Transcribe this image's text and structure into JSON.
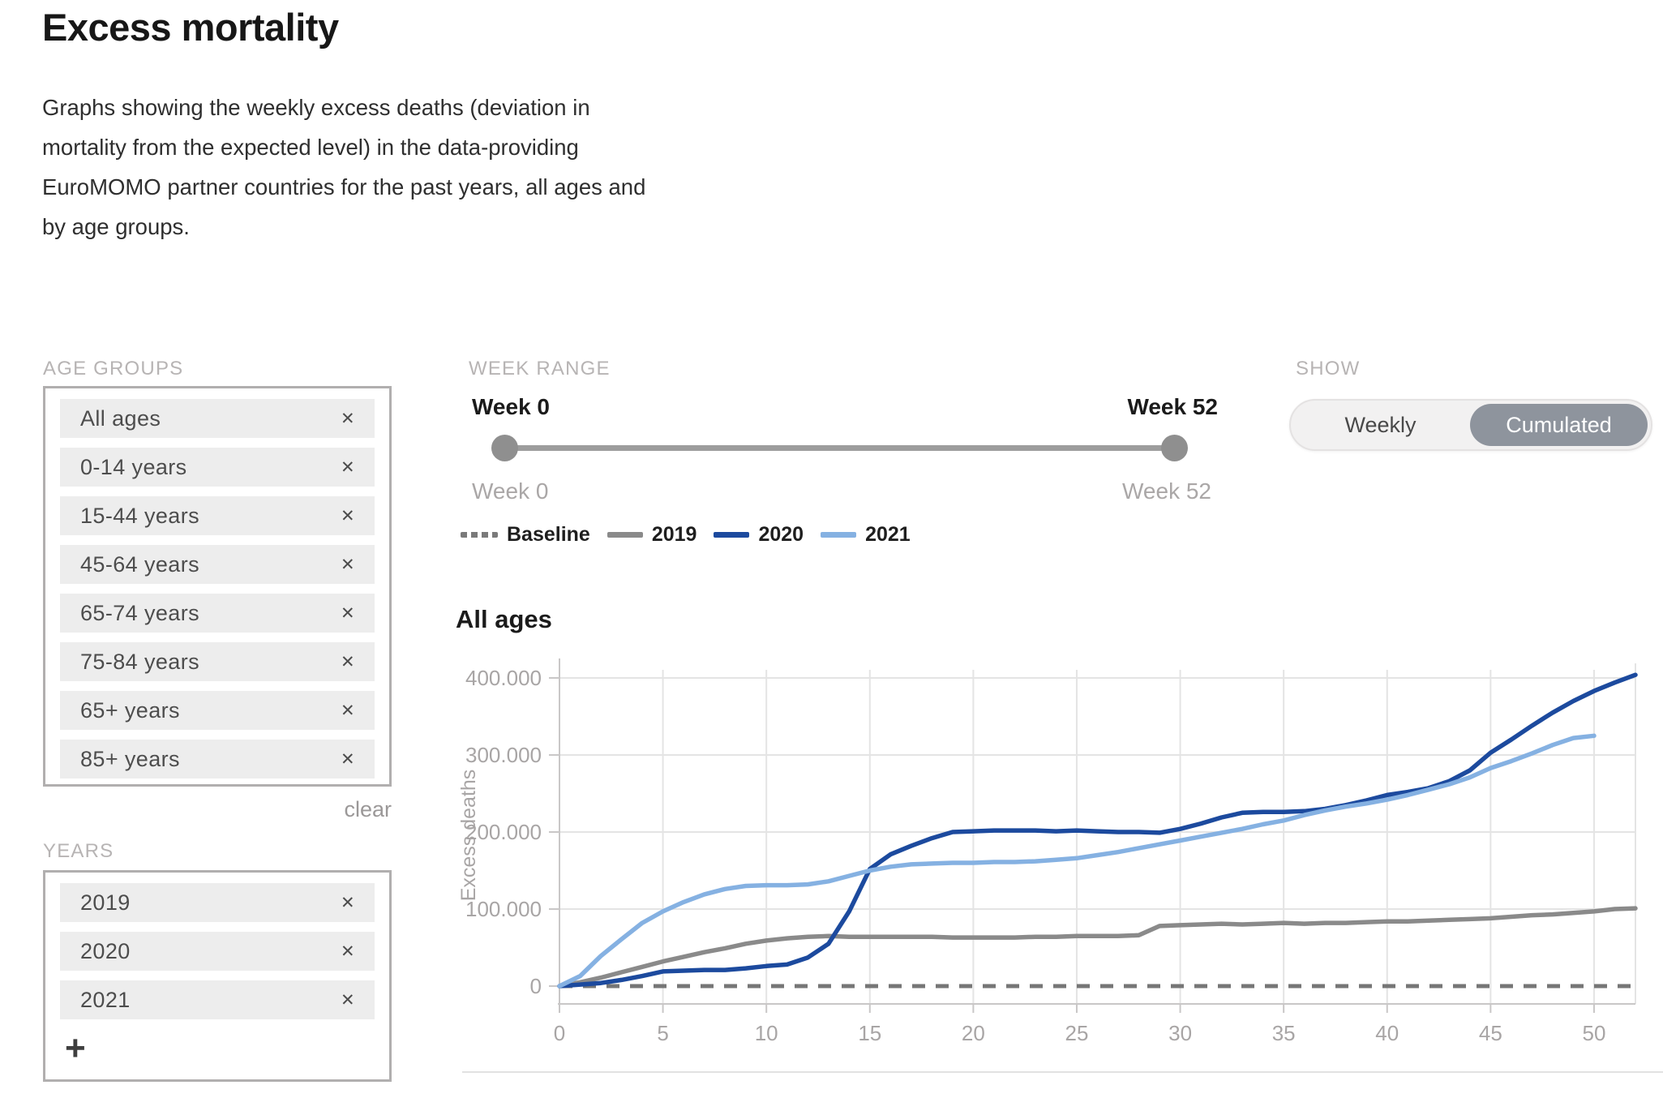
{
  "header": {
    "title": "Excess mortality",
    "description": "Graphs showing the weekly excess deaths (deviation in mortality from the expected level) in the data-providing EuroMOMO partner countries for the past years, all ages and by age groups."
  },
  "icons": {
    "remove": "✕",
    "add": "+"
  },
  "filters": {
    "age_groups": {
      "label": "AGE GROUPS",
      "items": [
        "All ages",
        "0-14 years",
        "15-44 years",
        "45-64 years",
        "65-74 years",
        "75-84 years",
        "65+ years",
        "85+ years"
      ],
      "clear_label": "clear"
    },
    "years": {
      "label": "YEARS",
      "items": [
        "2019",
        "2020",
        "2021"
      ]
    }
  },
  "week_range": {
    "label": "WEEK RANGE",
    "start_label": "Week 0",
    "end_label": "Week 52",
    "start_value_label": "Week 0",
    "end_value_label": "Week 52"
  },
  "show": {
    "label": "SHOW",
    "options": [
      "Weekly",
      "Cumulated"
    ],
    "selected": "Cumulated",
    "selected_color": "#8e949d"
  },
  "legend": {
    "items": [
      {
        "label": "Baseline",
        "color": "#7a7a7a",
        "dashed": true
      },
      {
        "label": "2019",
        "color": "#8a8a8a",
        "dashed": false
      },
      {
        "label": "2020",
        "color": "#1c4a9e",
        "dashed": false
      },
      {
        "label": "2021",
        "color": "#85b1e2",
        "dashed": false
      }
    ]
  },
  "chart_data": {
    "type": "line",
    "title": "All ages",
    "xlabel": "",
    "ylabel": "Excess deaths",
    "x_unit": "week",
    "x_start": 0,
    "x_end": 52,
    "xticks": [
      0,
      5,
      10,
      15,
      20,
      25,
      30,
      35,
      40,
      45,
      50
    ],
    "yticks": [
      {
        "value": 0,
        "label": "0"
      },
      {
        "value": 100000,
        "label": "100.000"
      },
      {
        "value": 200000,
        "label": "200.000"
      },
      {
        "value": 300000,
        "label": "300.000"
      },
      {
        "value": 400000,
        "label": "400.000"
      }
    ],
    "ylim": [
      0,
      400000
    ],
    "grid": true,
    "colors": {
      "axis": "#c9c7c7",
      "grid": "#e4e4e4",
      "tick_text": "#a8a5a5"
    },
    "series": [
      {
        "name": "Baseline",
        "color": "#767676",
        "dashed": true,
        "constant_value": 0,
        "x_range": [
          0,
          52
        ]
      },
      {
        "name": "2019",
        "color": "#8a8a8a",
        "dashed": false,
        "x_start": 0,
        "values": [
          0,
          5000,
          11000,
          18000,
          25000,
          32000,
          38000,
          44000,
          49000,
          55000,
          59000,
          62000,
          64000,
          65000,
          64000,
          64000,
          64000,
          64000,
          64000,
          63000,
          63000,
          63000,
          63000,
          64000,
          64000,
          65000,
          65000,
          65000,
          66000,
          78000,
          79000,
          80000,
          81000,
          80000,
          81000,
          82000,
          81000,
          82000,
          82000,
          83000,
          84000,
          84000,
          85000,
          86000,
          87000,
          88000,
          90000,
          92000,
          93000,
          95000,
          97000,
          100000,
          101000
        ]
      },
      {
        "name": "2020",
        "color": "#1c4a9e",
        "dashed": false,
        "x_start": 0,
        "values": [
          0,
          2000,
          4000,
          8000,
          13000,
          19000,
          20000,
          21000,
          21000,
          23000,
          26000,
          28000,
          37000,
          55000,
          97000,
          152000,
          171000,
          182000,
          192000,
          200000,
          201000,
          202000,
          202000,
          202000,
          201000,
          202000,
          201000,
          200000,
          200000,
          199000,
          204000,
          211000,
          219000,
          225000,
          226000,
          226000,
          227000,
          230000,
          235000,
          241000,
          248000,
          252000,
          257000,
          266000,
          280000,
          303000,
          320000,
          338000,
          355000,
          370000,
          383000,
          394000,
          404000
        ]
      },
      {
        "name": "2021",
        "color": "#85b1e2",
        "dashed": false,
        "x_start": 0,
        "values": [
          0,
          13000,
          39000,
          61000,
          82000,
          97000,
          109000,
          119000,
          126000,
          130000,
          131000,
          131000,
          132000,
          136000,
          143000,
          150000,
          155000,
          158000,
          159000,
          160000,
          160000,
          161000,
          161000,
          162000,
          164000,
          166000,
          170000,
          174000,
          179000,
          184000,
          189000,
          194000,
          199000,
          204000,
          210000,
          215000,
          222000,
          228000,
          233000,
          237000,
          242000,
          248000,
          255000,
          262000,
          271000,
          283000,
          292000,
          302000,
          313000,
          322000,
          325000
        ]
      }
    ]
  }
}
